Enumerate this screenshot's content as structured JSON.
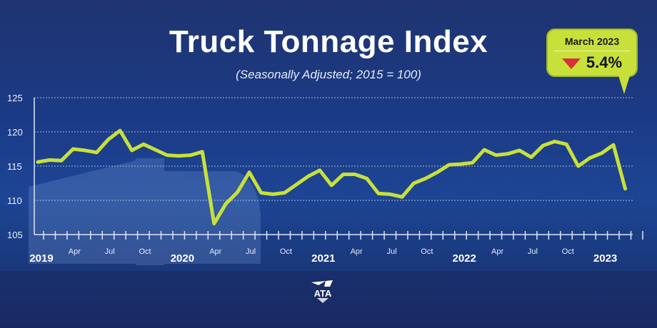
{
  "chart_data": {
    "type": "line",
    "title": "Truck Tonnage Index",
    "subtitle": "(Seasonally Adjusted; 2015 = 100)",
    "xlabel": "",
    "ylabel": "",
    "ylim": [
      105,
      125
    ],
    "yticks": [
      "125",
      "120",
      "115",
      "110",
      "105"
    ],
    "grid": true,
    "year_labels": [
      "2019",
      "2020",
      "2021",
      "2022",
      "2023"
    ],
    "month_labels": [
      "Apr",
      "Jul",
      "Oct"
    ],
    "x_start": "2019-01",
    "x_end": "2023-03",
    "series": [
      {
        "color": "#c8e03a",
        "values": [
          115.6,
          115.9,
          115.8,
          117.5,
          117.3,
          117.0,
          118.9,
          120.2,
          117.3,
          118.2,
          117.4,
          116.6,
          116.5,
          116.6,
          117.1,
          106.6,
          109.5,
          111.2,
          114.1,
          111.1,
          110.9,
          111.1,
          112.3,
          113.5,
          114.4,
          112.2,
          113.8,
          113.8,
          113.2,
          111.0,
          110.9,
          110.5,
          112.5,
          113.2,
          114.1,
          115.2,
          115.3,
          115.5,
          117.4,
          116.6,
          116.8,
          117.3,
          116.3,
          118.0,
          118.6,
          118.2,
          115.0,
          116.2,
          116.9,
          118.1,
          111.7
        ]
      }
    ]
  },
  "callout": {
    "date": "March 2023",
    "change": "5.4%",
    "direction": "down",
    "arrow_color": "#d9303a"
  },
  "logo": {
    "text": "ATA"
  },
  "colors": {
    "background": "#1b3a86",
    "line": "#c8e03a"
  }
}
